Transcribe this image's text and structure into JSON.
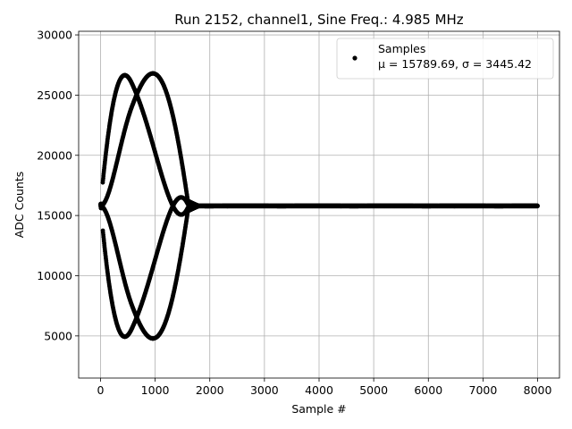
{
  "chart_data": {
    "type": "scatter",
    "title": "Run 2152, channel1, Sine Freq.: 4.985 MHz",
    "xlabel": "Sample #",
    "ylabel": "ADC Counts",
    "xlim": [
      -400,
      8400
    ],
    "ylim": [
      1500,
      30300
    ],
    "xticks": [
      "0",
      "1000",
      "2000",
      "3000",
      "4000",
      "5000",
      "6000",
      "7000",
      "8000"
    ],
    "yticks": [
      "5000",
      "10000",
      "15000",
      "20000",
      "25000",
      "30000"
    ],
    "grid": true,
    "legend": {
      "placement": "top-right",
      "entries": [
        {
          "name": "Samples",
          "stats": "μ = 15789.69, σ = 3445.42"
        }
      ]
    },
    "series": [
      {
        "name": "Samples",
        "color": "#000000",
        "marker": "dot",
        "signal": {
          "baseline": 15790,
          "peak_amplitude": 13100,
          "envelope_peak_sample": 580,
          "envelope_end_sample": 1600,
          "ringing_end_sample": 1780,
          "total_samples": 8000,
          "visible_envelope_lobes": 4,
          "max_value": 28900,
          "min_value": 2700
        }
      }
    ]
  }
}
